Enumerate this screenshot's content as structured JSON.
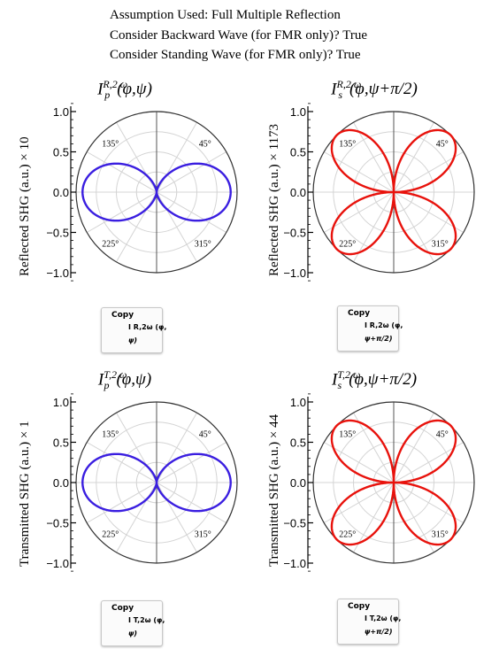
{
  "header": {
    "line1": "Assumption Used: Full Multiple Reflection",
    "line2": "Consider Backward Wave (for FMR only)? True",
    "line3": "Consider Standing Wave (for FMR only)? True"
  },
  "panels": [
    {
      "title_main": "I",
      "title_sup": "R,2 ω",
      "title_sub": "p",
      "title_args": "(φ,ψ)",
      "ylabel": "Reflected SHG (a.u.) × 10",
      "color": "#3a1ee0",
      "curve": "figure-eight",
      "copy": {
        "label": "Copy",
        "line1": "I R,2ω (φ,",
        "line2": "ψ)"
      }
    },
    {
      "title_main": "I",
      "title_sup": "R,2 ω",
      "title_sub": "s",
      "title_args": "(φ,ψ+π/2)",
      "ylabel": "Reflected SHG (a.u.) × 1173",
      "color": "#e8120c",
      "curve": "four-leaf",
      "copy": {
        "label": "Copy",
        "line1": "I R,2ω (φ,",
        "line2": "ψ+π/2)"
      }
    },
    {
      "title_main": "I",
      "title_sup": "T,2 ω",
      "title_sub": "p",
      "title_args": "(φ,ψ)",
      "ylabel": "Transmitted SHG (a.u.) × 1",
      "color": "#3a1ee0",
      "curve": "figure-eight",
      "copy": {
        "label": "Copy",
        "line1": "I T,2ω (φ,",
        "line2": "ψ)"
      }
    },
    {
      "title_main": "I",
      "title_sup": "T,2 ω",
      "title_sub": "s",
      "title_args": "(φ,ψ+π/2)",
      "ylabel": "Transmitted SHG (a.u.) × 44",
      "color": "#e8120c",
      "curve": "four-leaf",
      "copy": {
        "label": "Copy",
        "line1": "I T,2ω (φ,",
        "line2": "ψ+π/2)"
      }
    }
  ],
  "axis": {
    "ticks": [
      "1.0",
      "0.5",
      "0.0",
      "−0.5",
      "−1.0"
    ],
    "angles": [
      "135°",
      "45°",
      "225°",
      "315°"
    ]
  }
}
